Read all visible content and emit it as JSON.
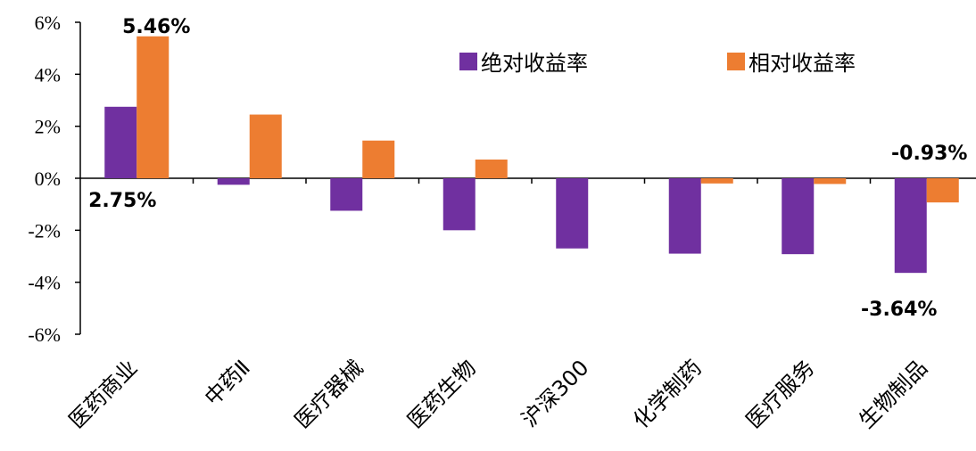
{
  "chart_data": {
    "type": "bar",
    "categories": [
      "医药商业",
      "中药Ⅱ",
      "医疗器械",
      "医药生物",
      "沪深300",
      "化学制药",
      "医疗服务",
      "生物制品"
    ],
    "series": [
      {
        "name": "绝对收益率",
        "color": "#7030a0",
        "values": [
          2.75,
          -0.25,
          -1.25,
          -2.0,
          -2.7,
          -2.9,
          -2.92,
          -3.64
        ]
      },
      {
        "name": "相对收益率",
        "color": "#ed7d31",
        "values": [
          5.46,
          2.45,
          1.45,
          0.72,
          0.0,
          -0.2,
          -0.22,
          -0.93
        ]
      }
    ],
    "ylim": [
      -6,
      6
    ],
    "yticks": [
      "6%",
      "4%",
      "2%",
      "0%",
      "-2%",
      "-4%",
      "-6%"
    ],
    "ytick_values": [
      6,
      4,
      2,
      0,
      -2,
      -4,
      -6
    ],
    "data_labels": [
      {
        "text": "5.46%",
        "category": "医药商业",
        "series": "相对收益率"
      },
      {
        "text": "2.75%",
        "category": "医药商业",
        "series": "绝对收益率"
      },
      {
        "text": "-0.93%",
        "category": "生物制品",
        "series": "相对收益率"
      },
      {
        "text": "-3.64%",
        "category": "生物制品",
        "series": "绝对收益率"
      }
    ],
    "legend_position": "top-right",
    "grid": false
  }
}
